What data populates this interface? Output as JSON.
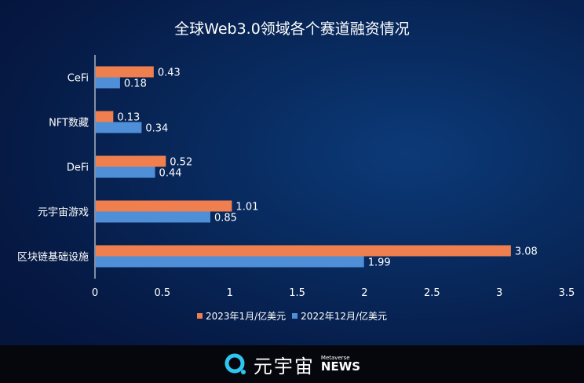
{
  "chart_data": {
    "type": "bar",
    "orientation": "horizontal",
    "title": "全球Web3.0领域各个赛道融资情况",
    "categories": [
      "CeFi",
      "NFT数藏",
      "DeFi",
      "元宇宙游戏",
      "区块链基础设施"
    ],
    "series": [
      {
        "name": "2023年1月/亿美元",
        "color": "#f07f4f",
        "values": [
          0.43,
          0.13,
          0.52,
          1.01,
          3.08
        ]
      },
      {
        "name": "2022年12月/亿美元",
        "color": "#4f8fd8",
        "values": [
          0.18,
          0.34,
          0.44,
          0.85,
          1.99
        ]
      }
    ],
    "xlim": [
      0,
      3.5
    ],
    "xticks": [
      "0",
      "0.5",
      "1",
      "1.5",
      "2",
      "2.5",
      "3",
      "3.5"
    ],
    "grid": false,
    "legend_position": "bottom"
  },
  "footer": {
    "brand": "元宇宙",
    "brand_sub": "Metaverse",
    "brand_news": "NEWS"
  }
}
